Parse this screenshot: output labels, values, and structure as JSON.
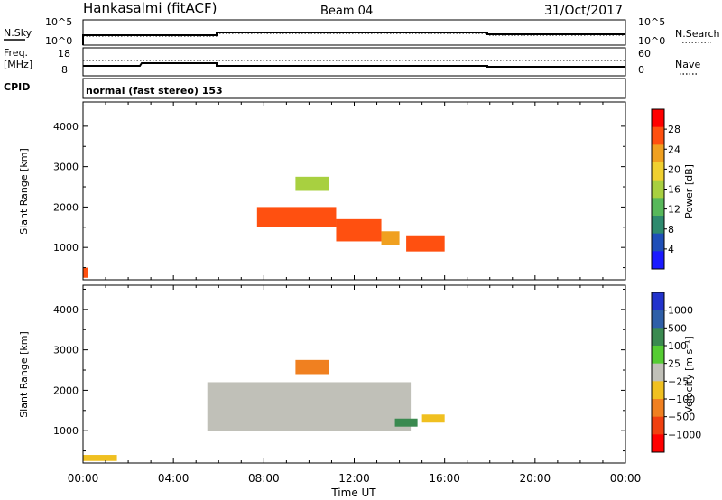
{
  "header": {
    "station": "Hankasalmi (fitACF)",
    "beam": "Beam 04",
    "date": "31/Oct/2017"
  },
  "top_panels": {
    "nsky": {
      "left_label": "N.Sky",
      "left_ticks": [
        "10^5",
        "10^0"
      ],
      "right_ticks": [
        "10^5",
        "10^0"
      ],
      "right_label": "N.Search"
    },
    "freq": {
      "left_label_1": "Freq.",
      "left_label_2": "[MHz]",
      "left_ticks": [
        "18",
        "8"
      ],
      "right_ticks": [
        "60",
        "0"
      ],
      "right_label": "Nave"
    },
    "cpid": {
      "left_label": "CPID",
      "text": "normal (fast stereo) 153"
    }
  },
  "chart_data": [
    {
      "type": "heatmap",
      "name": "power",
      "xlabel": "Time UT",
      "ylabel": "Slant Range [km]",
      "xlim": [
        0,
        24
      ],
      "ylim": [
        200,
        4600
      ],
      "x_ticks": [
        0,
        4,
        8,
        12,
        16,
        20,
        24
      ],
      "x_tick_labels": [
        "00:00",
        "04:00",
        "08:00",
        "12:00",
        "16:00",
        "20:00",
        "00:00"
      ],
      "y_ticks": [
        1000,
        2000,
        3000,
        4000
      ],
      "y_tick_labels": [
        "1000",
        "2000",
        "3000",
        "4000"
      ],
      "colorbar": {
        "label": "Power [dB]",
        "range": [
          0,
          32
        ],
        "ticks": [
          4,
          8,
          12,
          16,
          20,
          24,
          28
        ],
        "tick_labels": [
          "4",
          "8",
          "12",
          "16",
          "20",
          "24",
          "28"
        ],
        "colors": [
          "#1a1aff",
          "#1f4fb8",
          "#2e8a6e",
          "#57b85a",
          "#a8d040",
          "#f0d030",
          "#f0a020",
          "#ff5010",
          "#ff0000"
        ]
      },
      "regions": [
        {
          "t0": 7.7,
          "t1": 11.2,
          "r0": 1500,
          "r1": 2000,
          "value": 27
        },
        {
          "t0": 11.2,
          "t1": 13.2,
          "r0": 1150,
          "r1": 1700,
          "value": 25
        },
        {
          "t0": 13.2,
          "t1": 14.0,
          "r0": 1050,
          "r1": 1400,
          "value": 22
        },
        {
          "t0": 14.3,
          "t1": 16.0,
          "r0": 900,
          "r1": 1300,
          "value": 26
        },
        {
          "t0": 9.4,
          "t1": 10.9,
          "r0": 2400,
          "r1": 2750,
          "value": 16
        },
        {
          "t0": 0.0,
          "t1": 0.2,
          "r0": 250,
          "r1": 500,
          "value": 28
        }
      ]
    },
    {
      "type": "heatmap",
      "name": "velocity",
      "xlabel": "Time UT",
      "ylabel": "Slant Range [km]",
      "xlim": [
        0,
        24
      ],
      "ylim": [
        200,
        4600
      ],
      "x_ticks": [
        0,
        4,
        8,
        12,
        16,
        20,
        24
      ],
      "x_tick_labels": [
        "00:00",
        "04:00",
        "08:00",
        "12:00",
        "16:00",
        "20:00",
        "00:00"
      ],
      "y_ticks": [
        1000,
        2000,
        3000,
        4000
      ],
      "y_tick_labels": [
        "1000",
        "2000",
        "3000",
        "4000"
      ],
      "colorbar": {
        "label": "Velocity [m s⁻¹]",
        "tick_labels": [
          "1000",
          "500",
          "100",
          "25",
          "−25",
          "−100",
          "−500",
          "−1000"
        ],
        "colors": [
          "#2233cc",
          "#2f5fa8",
          "#3a8a50",
          "#55cc33",
          "#c0c0b8",
          "#f0c020",
          "#f08020",
          "#f04010",
          "#ff0000"
        ]
      },
      "regions": [
        {
          "t0": 5.5,
          "t1": 14.5,
          "r0": 1000,
          "r1": 2200,
          "value": 0
        },
        {
          "t0": 9.4,
          "t1": 10.9,
          "r0": 2400,
          "r1": 2750,
          "value": -300
        },
        {
          "t0": 15.0,
          "t1": 16.0,
          "r0": 1200,
          "r1": 1400,
          "value": -100
        },
        {
          "t0": 13.8,
          "t1": 14.8,
          "r0": 1100,
          "r1": 1300,
          "value": 100
        },
        {
          "t0": 0.0,
          "t1": 1.5,
          "r0": 250,
          "r1": 400,
          "value": -100
        }
      ]
    }
  ]
}
